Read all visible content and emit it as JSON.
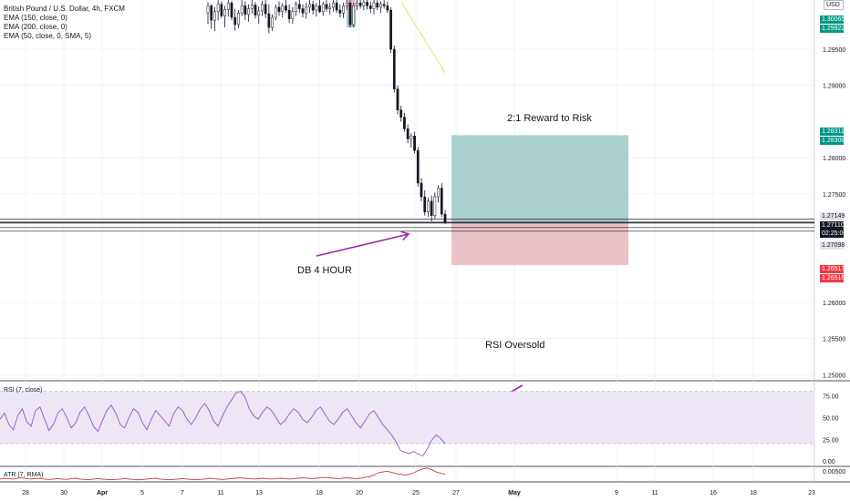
{
  "legend": {
    "symbol": "British Pound / U.S. Dollar, 4h, FXCM",
    "ema1": "EMA (150, close, 0)",
    "ema2": "EMA (200, close, 0)",
    "ema3": "EMA (50, close, 0, SMA, 5)"
  },
  "currency": "USD",
  "annotations": {
    "reward_risk": "2:1 Reward to Risk",
    "db": "DB 4 HOUR",
    "rsi_oversold": "RSI Oversold"
  },
  "rsi_label": "RSI (7, close)",
  "atr_label": "ATR (7, RMA)",
  "price_tags": {
    "green1": "1.30065",
    "green2": "1.29922",
    "teal1": "1.28311",
    "teal2": "1.28308",
    "gray1": "1.27149",
    "dark1": "1.27110",
    "timer": "02:25:06",
    "gray2": "1.27098",
    "red1": "1.26517",
    "red2": "1.26516"
  },
  "colors": {
    "candle": "#131722",
    "profit_zone": "#9cc9c5",
    "loss_zone": "#e6b7bd",
    "arrow": "#9c27b0",
    "rsi_line": "#9c56c0",
    "rsi_band": "#ece6f5",
    "atr_line": "#c43b3b",
    "green_tag": "#089981",
    "teal_tag": "#009688",
    "red_tag": "#f23645",
    "grid": "#e9ebf0",
    "ema_line": "#e8e88a"
  },
  "chart_data": {
    "type": "candlestick",
    "title": "British Pound / U.S. Dollar, 4h, FXCM",
    "price_axis": {
      "ticks": [
        "1.29500",
        "1.29000",
        "1.28000",
        "1.27500",
        "1.26000",
        "1.25500",
        "1.25000"
      ],
      "range": [
        1.2493,
        1.3018
      ]
    },
    "rsi_axis": {
      "ticks": [
        "75.00",
        "50.00",
        "25.00",
        "0.00"
      ],
      "range": [
        -5,
        90
      ],
      "band": [
        20,
        80
      ]
    },
    "atr_axis": {
      "ticks": [
        "0.00500"
      ]
    },
    "time_axis": {
      "ticks": [
        "28",
        "30",
        "Apr",
        "5",
        "7",
        "11",
        "13",
        "18",
        "20",
        "25",
        "27",
        "May",
        "9",
        "11",
        "16",
        "18",
        "23"
      ]
    },
    "candles": [
      [
        1.3,
        1.3015,
        1.2985,
        1.301
      ],
      [
        1.301,
        1.3012,
        1.2978,
        1.299
      ],
      [
        1.299,
        1.3008,
        1.2975,
        1.3002
      ],
      [
        1.3002,
        1.3018,
        1.299,
        1.3012
      ],
      [
        1.3012,
        1.3016,
        1.2993,
        1.2996
      ],
      [
        1.2996,
        1.301,
        1.298,
        1.3005
      ],
      [
        1.3005,
        1.3018,
        1.2995,
        1.3014
      ],
      [
        1.3014,
        1.3017,
        1.299,
        1.2994
      ],
      [
        1.2994,
        1.3006,
        1.2976,
        1.2984
      ],
      [
        1.2984,
        1.3004,
        1.2979,
        1.3
      ],
      [
        1.3,
        1.3018,
        1.2996,
        1.301
      ],
      [
        1.301,
        1.3016,
        1.299,
        1.2998
      ],
      [
        1.2998,
        1.3012,
        1.2988,
        1.3006
      ],
      [
        1.3006,
        1.3018,
        1.2999,
        1.3011
      ],
      [
        1.3011,
        1.3015,
        1.2992,
        1.2997
      ],
      [
        1.2997,
        1.3009,
        1.2985,
        1.3003
      ],
      [
        1.3003,
        1.3017,
        1.2996,
        1.3012
      ],
      [
        1.3012,
        1.3018,
        1.2993,
        1.2999
      ],
      [
        1.2999,
        1.3012,
        1.2972,
        1.298
      ],
      [
        1.298,
        1.2998,
        1.2975,
        1.2994
      ],
      [
        1.2994,
        1.3012,
        1.299,
        1.3008
      ],
      [
        1.3008,
        1.3016,
        1.2996,
        1.3002
      ],
      [
        1.3002,
        1.3014,
        1.2994,
        1.301
      ],
      [
        1.301,
        1.3018,
        1.3,
        1.3004
      ],
      [
        1.3004,
        1.3012,
        1.2986,
        1.2992
      ],
      [
        1.2992,
        1.3008,
        1.2985,
        1.3002
      ],
      [
        1.3002,
        1.3016,
        1.2996,
        1.3012
      ],
      [
        1.3012,
        1.3018,
        1.3,
        1.3006
      ],
      [
        1.3006,
        1.3012,
        1.2994,
        1.3
      ],
      [
        1.3,
        1.3014,
        1.2992,
        1.3008
      ],
      [
        1.3008,
        1.3018,
        1.3,
        1.3012
      ],
      [
        1.3012,
        1.3017,
        1.2998,
        1.3004
      ],
      [
        1.3004,
        1.3014,
        1.2995,
        1.301
      ],
      [
        1.301,
        1.3018,
        1.3,
        1.3002
      ],
      [
        1.3002,
        1.3016,
        1.2996,
        1.3012
      ],
      [
        1.3012,
        1.3018,
        1.3002,
        1.3006
      ],
      [
        1.3006,
        1.3014,
        1.2998,
        1.3008
      ],
      [
        1.3008,
        1.3018,
        1.3002,
        1.3014
      ],
      [
        1.3014,
        1.3018,
        1.3,
        1.3004
      ],
      [
        1.3004,
        1.3012,
        1.2994,
        1.3
      ],
      [
        1.3,
        1.3014,
        1.2993,
        1.301
      ],
      [
        1.301,
        1.3018,
        1.3004,
        1.3014
      ],
      [
        1.3014,
        1.3018,
        1.298,
        1.2984
      ],
      [
        1.2984,
        1.3014,
        1.298,
        1.301
      ],
      [
        1.301,
        1.3018,
        1.3004,
        1.3014
      ],
      [
        1.3014,
        1.3018,
        1.3006,
        1.301
      ],
      [
        1.301,
        1.3018,
        1.3004,
        1.3015
      ],
      [
        1.3015,
        1.3018,
        1.3005,
        1.301
      ],
      [
        1.301,
        1.3016,
        1.3,
        1.3006
      ],
      [
        1.3006,
        1.3018,
        1.2998,
        1.3014
      ],
      [
        1.3014,
        1.3018,
        1.3004,
        1.3008
      ],
      [
        1.3008,
        1.3016,
        1.3,
        1.3012
      ],
      [
        1.3012,
        1.3018,
        1.3006,
        1.301
      ],
      [
        1.301,
        1.3016,
        1.3,
        1.3004
      ],
      [
        1.3004,
        1.3008,
        1.2945,
        1.295
      ],
      [
        1.295,
        1.2955,
        1.289,
        1.2895
      ],
      [
        1.2895,
        1.29,
        1.286,
        1.2866
      ],
      [
        1.2866,
        1.2872,
        1.285,
        1.2856
      ],
      [
        1.2856,
        1.2862,
        1.2836,
        1.284
      ],
      [
        1.284,
        1.2846,
        1.282,
        1.2826
      ],
      [
        1.2826,
        1.2834,
        1.2814,
        1.283
      ],
      [
        1.283,
        1.2836,
        1.2806,
        1.281
      ],
      [
        1.281,
        1.2815,
        1.276,
        1.2765
      ],
      [
        1.2765,
        1.2772,
        1.274,
        1.2746
      ],
      [
        1.2746,
        1.2755,
        1.272,
        1.2725
      ],
      [
        1.2725,
        1.2745,
        1.2718,
        1.274
      ],
      [
        1.274,
        1.2748,
        1.2712,
        1.272
      ],
      [
        1.272,
        1.2752,
        1.2716,
        1.2746
      ],
      [
        1.2746,
        1.2762,
        1.2738,
        1.2758
      ],
      [
        1.2758,
        1.2765,
        1.2718,
        1.2722
      ],
      [
        1.2722,
        1.2728,
        1.2708,
        1.2711
      ]
    ],
    "levels": [
      1.27149,
      1.2711,
      1.27098
    ],
    "position": {
      "entry": 1.2711,
      "target": 1.28311,
      "stop": 1.26517
    },
    "rsi": [
      48,
      55,
      42,
      36,
      52,
      60,
      45,
      40,
      58,
      62,
      48,
      35,
      42,
      55,
      60,
      50,
      38,
      44,
      56,
      62,
      52,
      40,
      34,
      46,
      58,
      64,
      55,
      42,
      38,
      50,
      60,
      56,
      44,
      36,
      48,
      58,
      52,
      46,
      40,
      54,
      62,
      58,
      48,
      42,
      50,
      60,
      66,
      58,
      46,
      40,
      52,
      62,
      70,
      78,
      80,
      74,
      60,
      52,
      48,
      56,
      62,
      58,
      50,
      42,
      46,
      54,
      60,
      56,
      48,
      44,
      50,
      58,
      62,
      54,
      46,
      42,
      48,
      56,
      60,
      52,
      44,
      38,
      46,
      54,
      58,
      50,
      42,
      36,
      30,
      22,
      12,
      10,
      9,
      11,
      8,
      6,
      14,
      24,
      30,
      26,
      20
    ],
    "atr": [
      40,
      42,
      41,
      40,
      42,
      43,
      41,
      40,
      41,
      42,
      40,
      39,
      40,
      41,
      40,
      39,
      41,
      42,
      40,
      39,
      38,
      40,
      41,
      40,
      39,
      38,
      39,
      40,
      41,
      40,
      39,
      38,
      39,
      40,
      41,
      42,
      40,
      39,
      38,
      39,
      40,
      41,
      40,
      39,
      38,
      39,
      40,
      42,
      41,
      40,
      39,
      40,
      41,
      42,
      43,
      42,
      41,
      40,
      41,
      42,
      41,
      40,
      41,
      42,
      41,
      40,
      41,
      42,
      43,
      42,
      41,
      42,
      43,
      44,
      43,
      42,
      41,
      42,
      43,
      42,
      41,
      42,
      44,
      46,
      50,
      56,
      58,
      60,
      57,
      54,
      52,
      50,
      52,
      56,
      62,
      66,
      68,
      64,
      58,
      55,
      52
    ]
  }
}
